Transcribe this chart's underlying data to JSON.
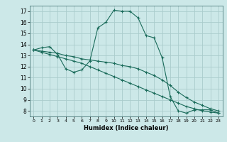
{
  "xlabel": "Humidex (Indice chaleur)",
  "bg_color": "#cce8e8",
  "grid_color": "#aacccc",
  "line_color": "#1a6b5a",
  "xlim": [
    -0.5,
    23.5
  ],
  "ylim": [
    7.5,
    17.5
  ],
  "xticks": [
    0,
    1,
    2,
    3,
    4,
    5,
    6,
    7,
    8,
    9,
    10,
    11,
    12,
    13,
    14,
    15,
    16,
    17,
    18,
    19,
    20,
    21,
    22,
    23
  ],
  "yticks": [
    8,
    9,
    10,
    11,
    12,
    13,
    14,
    15,
    16,
    17
  ],
  "line1_x": [
    0,
    1,
    2,
    3,
    4,
    5,
    6,
    7,
    8,
    9,
    10,
    11,
    12,
    13,
    14,
    15,
    16,
    17,
    18,
    19,
    20,
    21,
    22,
    23
  ],
  "line1_y": [
    13.5,
    13.7,
    13.8,
    13.1,
    11.8,
    11.5,
    11.7,
    12.5,
    15.5,
    16.0,
    17.1,
    17.0,
    17.0,
    16.4,
    14.8,
    14.6,
    12.8,
    9.3,
    8.0,
    7.8,
    8.1,
    8.1,
    8.1,
    7.8
  ],
  "line2_x": [
    0,
    1,
    2,
    3,
    4,
    5,
    6,
    7,
    8,
    9,
    10,
    11,
    12,
    13,
    14,
    15,
    16,
    17,
    18,
    19,
    20,
    21,
    22,
    23
  ],
  "line2_y": [
    13.5,
    13.4,
    13.3,
    13.2,
    13.0,
    12.9,
    12.7,
    12.6,
    12.5,
    12.4,
    12.3,
    12.1,
    12.0,
    11.8,
    11.5,
    11.2,
    10.8,
    10.3,
    9.7,
    9.2,
    8.8,
    8.5,
    8.2,
    8.0
  ],
  "line3_x": [
    0,
    1,
    2,
    3,
    4,
    5,
    6,
    7,
    8,
    9,
    10,
    11,
    12,
    13,
    14,
    15,
    16,
    17,
    18,
    19,
    20,
    21,
    22,
    23
  ],
  "line3_y": [
    13.5,
    13.3,
    13.1,
    12.9,
    12.7,
    12.5,
    12.3,
    12.0,
    11.7,
    11.4,
    11.1,
    10.8,
    10.5,
    10.2,
    9.9,
    9.6,
    9.3,
    9.0,
    8.7,
    8.4,
    8.2,
    8.0,
    7.9,
    7.8
  ],
  "marker": "+"
}
